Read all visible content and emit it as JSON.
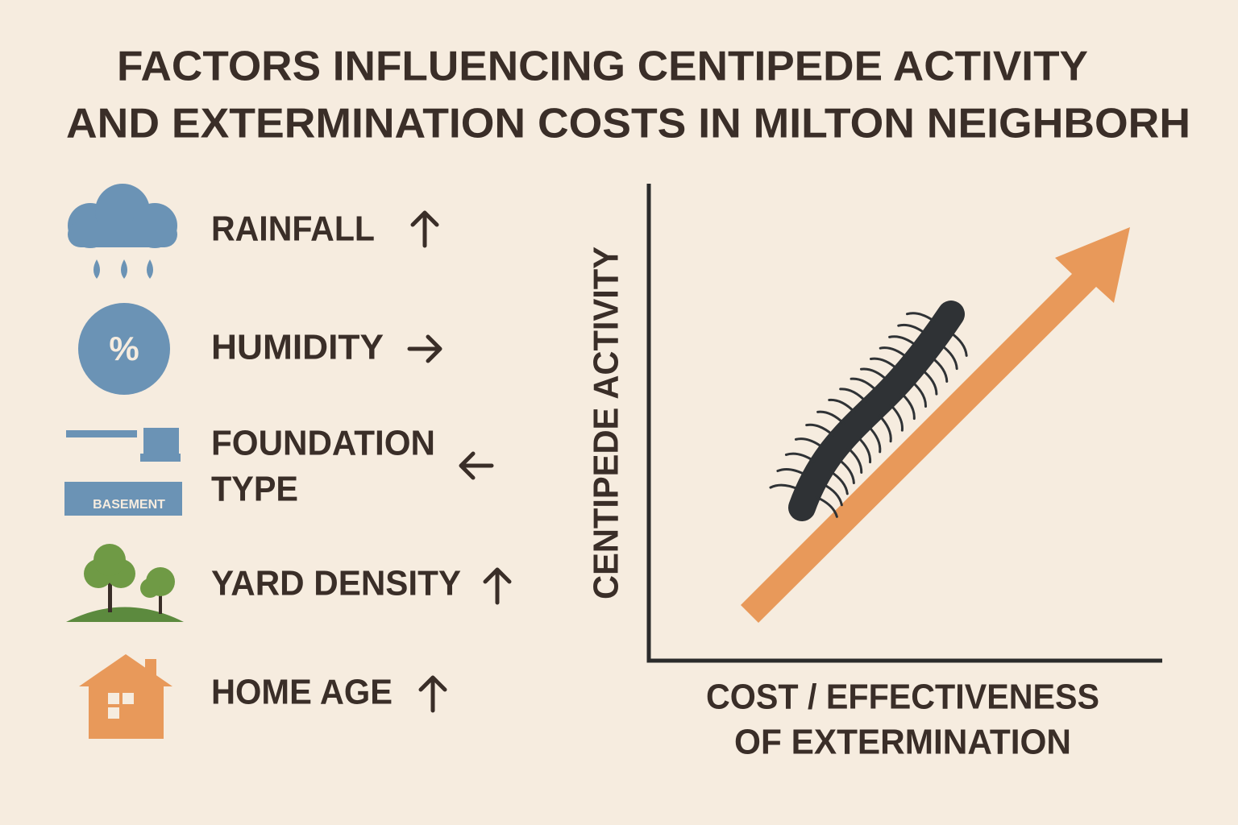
{
  "header": {
    "title_lines": [
      "FACTORS INFLUENCING CENTIPEDE ACTIVITY",
      "AND EXTERMINATION COSTS IN MILTON NEIGHBORH"
    ]
  },
  "factors": [
    {
      "lines": [
        "RAINFALL"
      ]
    },
    {
      "lines": [
        "HUMIDITY"
      ],
      "icon_text": "%"
    },
    {
      "lines": [
        "FOUNDATION",
        "TYPE"
      ],
      "icon_text": "BASEMENT"
    },
    {
      "lines": [
        "YARD DENSITY"
      ]
    },
    {
      "lines": [
        "HOME AGE"
      ]
    }
  ],
  "diagram": {
    "y_label": "CENTIPEDE ACTIVITY",
    "x_label_lines": [
      "COST / EFFECTIVENESS",
      "OF EXTERMINATION"
    ]
  }
}
